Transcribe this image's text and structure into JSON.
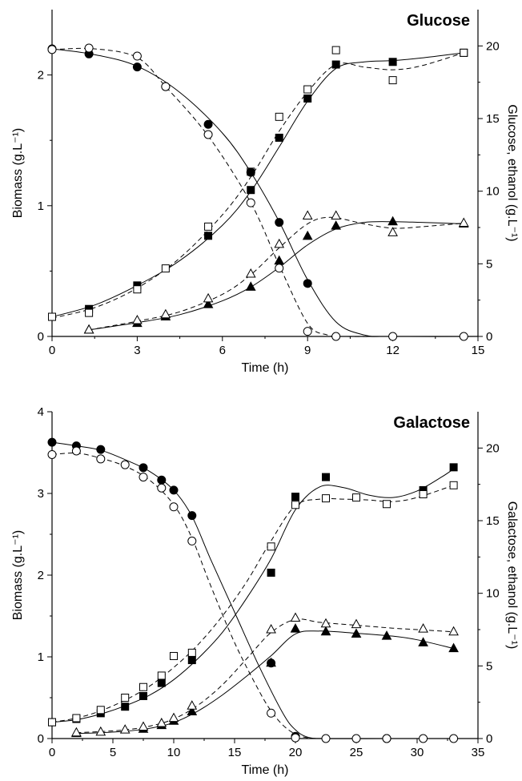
{
  "chart_data": [
    {
      "type": "scatter",
      "title": "Glucose",
      "xlabel": "Time (h)",
      "ylabel": "Biomass (g.L⁻¹)",
      "y2label": "Glucose, ethanol (g.L⁻¹)",
      "xlim": [
        0,
        15
      ],
      "ylim": [
        0,
        2.5
      ],
      "y2lim": [
        0,
        22.5
      ],
      "xticks": [
        0,
        3,
        6,
        9,
        12,
        15
      ],
      "yticks": [
        0,
        1,
        2
      ],
      "y2ticks": [
        0,
        5,
        10,
        15,
        20
      ],
      "grid": false,
      "series": [
        {
          "marker": "filled-square",
          "axis": "left",
          "line": "solid",
          "x": [
            0,
            1.3,
            3,
            5.5,
            7,
            8,
            9,
            10,
            12,
            14.5
          ],
          "y": [
            0.15,
            0.21,
            0.39,
            0.77,
            1.12,
            1.52,
            1.82,
            2.08,
            2.1,
            2.17
          ],
          "fit_x": [
            0,
            1.5,
            3,
            4.5,
            6,
            7,
            8,
            9,
            10,
            11,
            12,
            13,
            14.5
          ],
          "fit_y": [
            0.15,
            0.24,
            0.39,
            0.58,
            0.85,
            1.11,
            1.45,
            1.8,
            2.05,
            2.1,
            2.11,
            2.13,
            2.17
          ]
        },
        {
          "marker": "open-square",
          "axis": "left",
          "line": "dashed",
          "x": [
            0,
            1.3,
            3,
            4,
            5.5,
            7,
            8,
            9,
            10,
            12,
            14.5
          ],
          "y": [
            0.15,
            0.18,
            0.36,
            0.52,
            0.84,
            1.26,
            1.68,
            1.89,
            2.19,
            1.96,
            2.17
          ],
          "fit_x": [
            0,
            1.5,
            3,
            4.5,
            6,
            7,
            8,
            9,
            10,
            11,
            12,
            13,
            14.5
          ],
          "fit_y": [
            0.14,
            0.22,
            0.37,
            0.6,
            0.93,
            1.22,
            1.57,
            1.87,
            2.08,
            2.06,
            2.04,
            2.07,
            2.17
          ]
        },
        {
          "marker": "filled-triangle",
          "axis": "right",
          "line": "solid",
          "x": [
            1.3,
            3,
            4,
            5.5,
            7,
            8,
            9,
            10,
            12,
            14.5
          ],
          "y": [
            0.45,
            0.9,
            1.35,
            2.2,
            3.4,
            5.2,
            6.9,
            7.6,
            7.9,
            7.75
          ],
          "fit_x": [
            1.3,
            3,
            4.5,
            6,
            7,
            8,
            9,
            10,
            11,
            12,
            13,
            14.5
          ],
          "fit_y": [
            0.45,
            0.95,
            1.5,
            2.45,
            3.4,
            4.75,
            6.3,
            7.4,
            7.85,
            7.9,
            7.85,
            7.75
          ]
        },
        {
          "marker": "open-triangle",
          "axis": "right",
          "line": "dashed",
          "x": [
            1.3,
            3,
            4,
            5.5,
            7,
            8,
            9,
            10,
            12,
            14.5
          ],
          "y": [
            0.45,
            1.1,
            1.5,
            2.6,
            4.3,
            6.35,
            8.3,
            8.3,
            7.15,
            7.8
          ],
          "fit_x": [
            1.3,
            3,
            4.5,
            6,
            7,
            8,
            9,
            9.8,
            11,
            12,
            13,
            14.5
          ],
          "fit_y": [
            0.45,
            1.05,
            1.7,
            2.9,
            4.25,
            6.1,
            7.75,
            8.2,
            7.75,
            7.45,
            7.55,
            7.8
          ]
        },
        {
          "marker": "filled-circle",
          "axis": "right",
          "line": "solid",
          "x": [
            0,
            1.3,
            3,
            4,
            5.5,
            7,
            8,
            9
          ],
          "y": [
            19.8,
            19.45,
            18.55,
            17.2,
            14.6,
            11.3,
            7.85,
            3.65
          ],
          "fit_x": [
            0,
            1.5,
            3,
            4.5,
            6,
            7,
            8,
            9,
            10,
            11,
            12,
            15
          ],
          "fit_y": [
            19.8,
            19.4,
            18.6,
            16.8,
            14.0,
            11.3,
            7.9,
            3.9,
            1.0,
            0.1,
            0.0,
            0.0
          ]
        },
        {
          "marker": "open-circle",
          "axis": "right",
          "line": "dashed",
          "x": [
            0,
            1.3,
            3,
            4,
            5.5,
            7,
            8,
            9,
            10,
            12,
            14.5
          ],
          "y": [
            19.75,
            19.85,
            19.3,
            17.2,
            13.9,
            9.2,
            4.7,
            0.35,
            0.0,
            0.0,
            0.0
          ],
          "fit_x": [
            0,
            1.5,
            3,
            4,
            5.5,
            7,
            8,
            9,
            9.7,
            10.3,
            12,
            15
          ],
          "fit_y": [
            19.75,
            19.8,
            19.2,
            17.2,
            13.8,
            9.2,
            4.9,
            0.9,
            0.1,
            0.0,
            0.0,
            0.0
          ]
        }
      ]
    },
    {
      "type": "scatter",
      "title": "Galactose",
      "xlabel": "Time (h)",
      "ylabel": "Biomass (g.L⁻¹)",
      "y2label": "Galactose, ethanol (g.L⁻¹)",
      "xlim": [
        0,
        35
      ],
      "ylim": [
        0,
        4
      ],
      "y2lim": [
        0,
        22.5
      ],
      "xticks": [
        0,
        5,
        10,
        15,
        20,
        25,
        30,
        35
      ],
      "yticks": [
        0,
        1,
        2,
        3,
        4
      ],
      "y2ticks": [
        0,
        5,
        10,
        15,
        20
      ],
      "grid": false,
      "series": [
        {
          "marker": "filled-square",
          "axis": "left",
          "line": "solid",
          "x": [
            0,
            2,
            4,
            6,
            7.5,
            9,
            11.5,
            18,
            20,
            22.5,
            30.5,
            33
          ],
          "y": [
            0.2,
            0.24,
            0.31,
            0.39,
            0.52,
            0.68,
            0.96,
            2.03,
            2.96,
            3.2,
            3.04,
            3.32
          ],
          "fit_x": [
            0,
            2,
            4,
            6,
            8,
            10,
            12,
            14,
            16,
            18,
            20,
            22,
            24,
            26,
            28,
            30,
            32,
            33
          ],
          "fit_y": [
            0.2,
            0.23,
            0.3,
            0.4,
            0.53,
            0.72,
            0.98,
            1.3,
            1.72,
            2.2,
            2.8,
            3.08,
            3.07,
            2.98,
            2.95,
            3.03,
            3.2,
            3.3
          ]
        },
        {
          "marker": "open-square",
          "axis": "left",
          "line": "dashed",
          "x": [
            0,
            2,
            4,
            6,
            7.5,
            9,
            10,
            11.5,
            18,
            20,
            22.5,
            25,
            27.5,
            30.5,
            33
          ],
          "y": [
            0.2,
            0.25,
            0.35,
            0.5,
            0.63,
            0.77,
            1.01,
            1.05,
            2.35,
            2.86,
            2.94,
            2.95,
            2.87,
            2.99,
            3.1
          ],
          "fit_x": [
            0,
            2,
            4,
            6,
            8,
            10,
            12,
            14,
            16,
            18,
            20,
            22,
            24,
            26,
            28,
            30,
            33
          ],
          "fit_y": [
            0.2,
            0.25,
            0.34,
            0.47,
            0.64,
            0.87,
            1.15,
            1.5,
            1.92,
            2.42,
            2.85,
            2.93,
            2.93,
            2.92,
            2.9,
            2.95,
            3.1
          ]
        },
        {
          "marker": "filled-triangle",
          "axis": "right",
          "line": "solid",
          "x": [
            2,
            7.5,
            9,
            10,
            11.5,
            18,
            20,
            22.5,
            25,
            27.5,
            30.5,
            33
          ],
          "y": [
            0.35,
            0.65,
            0.9,
            1.2,
            1.85,
            5.2,
            7.55,
            7.35,
            7.2,
            7.05,
            6.6,
            6.2
          ],
          "fit_x": [
            2,
            4,
            6,
            8,
            10,
            12,
            14,
            16,
            18,
            20,
            22,
            25,
            28,
            30,
            33
          ],
          "fit_y": [
            0.35,
            0.4,
            0.5,
            0.7,
            1.1,
            1.9,
            3.0,
            4.3,
            5.7,
            7.2,
            7.4,
            7.25,
            7.05,
            6.8,
            6.2
          ]
        },
        {
          "marker": "open-triangle",
          "axis": "right",
          "line": "dashed",
          "x": [
            2,
            4,
            6,
            7.5,
            9,
            10,
            11.5,
            18,
            20,
            22.5,
            25,
            30.5,
            33
          ],
          "y": [
            0.4,
            0.45,
            0.6,
            0.8,
            1.05,
            1.4,
            2.25,
            7.5,
            8.3,
            7.9,
            7.85,
            7.55,
            7.35
          ],
          "fit_x": [
            2,
            4,
            6,
            8,
            10,
            12,
            14,
            16,
            18,
            20,
            22,
            25,
            28,
            30,
            33
          ],
          "fit_y": [
            0.4,
            0.48,
            0.6,
            0.85,
            1.35,
            2.3,
            3.7,
            5.5,
            7.3,
            8.2,
            8.0,
            7.8,
            7.6,
            7.5,
            7.35
          ]
        },
        {
          "marker": "filled-circle",
          "axis": "right",
          "line": "solid",
          "x": [
            0,
            2,
            4,
            7.5,
            9,
            10,
            11.5,
            18,
            20,
            27.5
          ],
          "y": [
            20.4,
            20.15,
            19.9,
            18.65,
            17.8,
            17.1,
            15.35,
            5.2,
            0.15,
            0.0
          ],
          "fit_x": [
            0,
            2,
            4,
            6,
            8,
            10,
            11.5,
            13,
            15,
            17,
            19,
            20,
            21,
            22.5,
            27.5,
            33
          ],
          "fit_y": [
            20.4,
            20.15,
            19.85,
            19.2,
            18.4,
            17.1,
            15.3,
            12.4,
            8.7,
            5.0,
            1.7,
            0.6,
            0.1,
            0.0,
            0.0,
            0.0
          ]
        },
        {
          "marker": "open-circle",
          "axis": "right",
          "line": "dashed",
          "x": [
            0,
            2,
            4,
            6,
            7.5,
            9,
            10,
            11.5,
            18,
            20,
            22.5,
            25,
            27.5,
            30.5,
            33
          ],
          "y": [
            19.55,
            19.8,
            19.25,
            18.85,
            18.0,
            17.25,
            15.95,
            13.6,
            1.75,
            0.05,
            0.0,
            0.0,
            0.0,
            0.0,
            0.0
          ],
          "fit_x": [
            0,
            2,
            4,
            6,
            8,
            10,
            11.5,
            13,
            15,
            17,
            18,
            19,
            20,
            21,
            22,
            25,
            33
          ],
          "fit_y": [
            19.55,
            19.65,
            19.3,
            18.75,
            17.8,
            16.1,
            13.8,
            10.6,
            6.6,
            3.3,
            1.9,
            0.9,
            0.3,
            0.05,
            0.0,
            0.0,
            0.0
          ]
        }
      ]
    }
  ]
}
